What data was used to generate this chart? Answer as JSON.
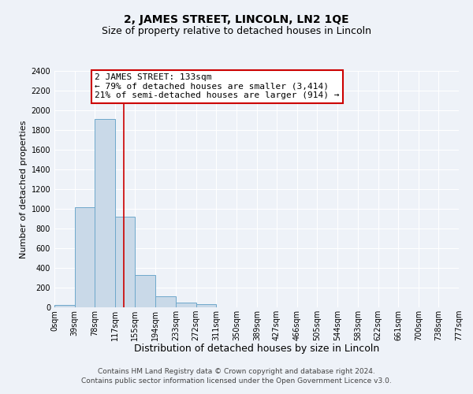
{
  "title": "2, JAMES STREET, LINCOLN, LN2 1QE",
  "subtitle": "Size of property relative to detached houses in Lincoln",
  "xlabel": "Distribution of detached houses by size in Lincoln",
  "ylabel": "Number of detached properties",
  "footer_lines": [
    "Contains HM Land Registry data © Crown copyright and database right 2024.",
    "Contains public sector information licensed under the Open Government Licence v3.0."
  ],
  "bin_edges": [
    0,
    39,
    78,
    117,
    155,
    194,
    233,
    272,
    311,
    350,
    389,
    427,
    466,
    505,
    544,
    583,
    622,
    661,
    700,
    738,
    777
  ],
  "bin_labels": [
    "0sqm",
    "39sqm",
    "78sqm",
    "117sqm",
    "155sqm",
    "194sqm",
    "233sqm",
    "272sqm",
    "311sqm",
    "350sqm",
    "389sqm",
    "427sqm",
    "466sqm",
    "505sqm",
    "544sqm",
    "583sqm",
    "622sqm",
    "661sqm",
    "700sqm",
    "738sqm",
    "777sqm"
  ],
  "bar_heights": [
    25,
    1020,
    1910,
    920,
    325,
    110,
    50,
    30,
    0,
    0,
    0,
    0,
    0,
    0,
    0,
    0,
    0,
    0,
    0,
    0
  ],
  "bar_color": "#c9d9e8",
  "bar_edge_color": "#6ea8cb",
  "property_line_x": 133,
  "property_line_color": "#cc0000",
  "annotation_title": "2 JAMES STREET: 133sqm",
  "annotation_line1": "← 79% of detached houses are smaller (3,414)",
  "annotation_line2": "21% of semi-detached houses are larger (914) →",
  "annotation_box_color": "#ffffff",
  "annotation_box_edge_color": "#cc0000",
  "ylim": [
    0,
    2400
  ],
  "yticks": [
    0,
    200,
    400,
    600,
    800,
    1000,
    1200,
    1400,
    1600,
    1800,
    2000,
    2200,
    2400
  ],
  "background_color": "#eef2f8",
  "grid_color": "#ffffff",
  "title_fontsize": 10,
  "subtitle_fontsize": 9,
  "xlabel_fontsize": 9,
  "ylabel_fontsize": 8,
  "tick_fontsize": 7,
  "annotation_fontsize": 8,
  "footer_fontsize": 6.5
}
